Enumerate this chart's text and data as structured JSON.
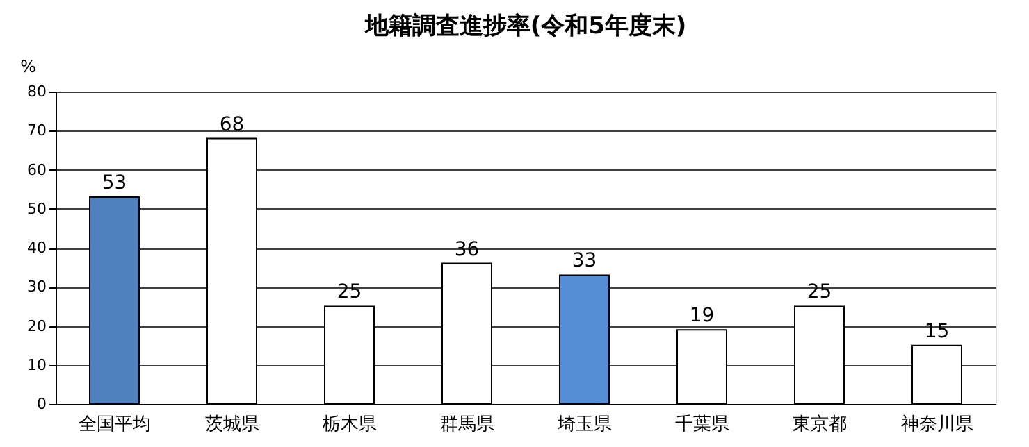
{
  "chart_data": {
    "type": "bar",
    "title": "地籍調査進捗率(令和5年度末)",
    "ylabel": "%",
    "categories": [
      "全国平均",
      "茨城県",
      "栃木県",
      "群馬県",
      "埼玉県",
      "千葉県",
      "東京都",
      "神奈川県"
    ],
    "values": [
      53,
      68,
      25,
      36,
      33,
      19,
      25,
      15
    ],
    "colors": [
      "#4f81bd",
      "#ffffff",
      "#ffffff",
      "#ffffff",
      "#558ed5",
      "#ffffff",
      "#ffffff",
      "#ffffff"
    ],
    "ylim": [
      0,
      80
    ],
    "yticks": [
      0,
      10,
      20,
      30,
      40,
      50,
      60,
      70,
      80
    ],
    "grid": "y",
    "data_labels": true
  }
}
